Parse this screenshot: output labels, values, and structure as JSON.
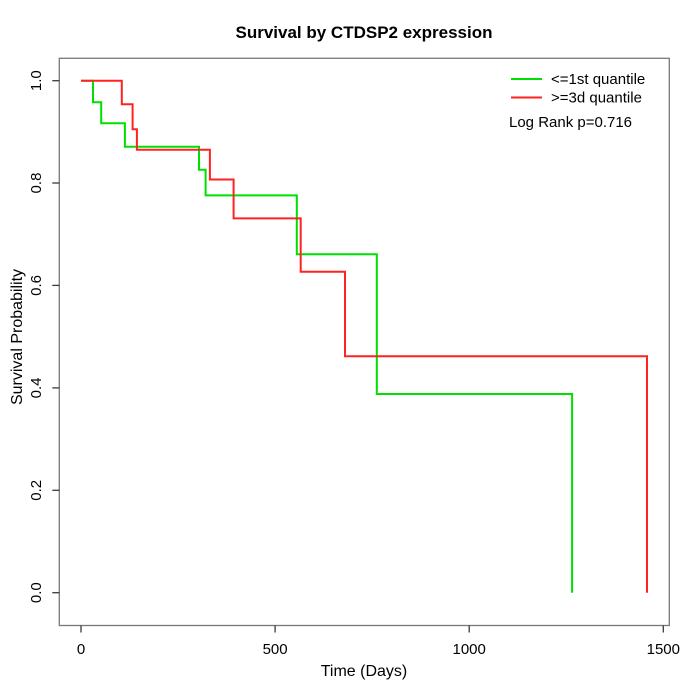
{
  "chart_data": {
    "type": "line",
    "subtype": "kaplan-meier-step",
    "title": "Survival by CTDSP2 expression",
    "xlabel": "Time (Days)",
    "ylabel": "Survival Probability",
    "xlim": [
      0,
      1500
    ],
    "ylim": [
      0.0,
      1.0
    ],
    "grid": "off",
    "legend_position": "top-right",
    "annotation": "Log Rank p=0.716",
    "x_ticks": [
      0,
      500,
      1000,
      1500
    ],
    "x_tick_labels": [
      "0",
      "500",
      "1000",
      "1500"
    ],
    "y_ticks": [
      0.0,
      0.2,
      0.4,
      0.6,
      0.8,
      1.0
    ],
    "y_tick_labels": [
      "0.0",
      "0.2",
      "0.4",
      "0.6",
      "0.8",
      "1.0"
    ],
    "series": [
      {
        "name": "<=1st quantile",
        "color": "#00E000",
        "points_time_days_vs_survival": [
          [
            0,
            1.0
          ],
          [
            31,
            0.958
          ],
          [
            52,
            0.917
          ],
          [
            113,
            0.871
          ],
          [
            304,
            0.826
          ],
          [
            321,
            0.776
          ],
          [
            556,
            0.661
          ],
          [
            762,
            0.388
          ],
          [
            1265,
            0.0
          ]
        ]
      },
      {
        "name": ">=3d quantile",
        "color": "#FF2222",
        "points_time_days_vs_survival": [
          [
            0,
            1.0
          ],
          [
            105,
            0.954
          ],
          [
            133,
            0.905
          ],
          [
            144,
            0.865
          ],
          [
            332,
            0.807
          ],
          [
            393,
            0.731
          ],
          [
            566,
            0.627
          ],
          [
            680,
            0.462
          ],
          [
            1458,
            0.0
          ]
        ]
      }
    ]
  }
}
